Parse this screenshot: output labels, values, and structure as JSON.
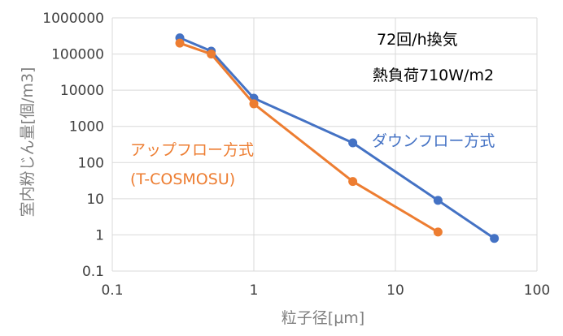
{
  "chart_data": {
    "type": "line",
    "x_scale": "log",
    "y_scale": "log",
    "xlabel": "粒子径[μm]",
    "ylabel": "室内粉じん量[個/m3]",
    "xlim": [
      0.1,
      100
    ],
    "ylim": [
      0.1,
      1000000
    ],
    "x_ticks": [
      "0.1",
      "1",
      "10",
      "100"
    ],
    "y_ticks": [
      "0.1",
      "1",
      "10",
      "100",
      "1000",
      "10000",
      "100000",
      "1000000"
    ],
    "grid": true,
    "series": [
      {
        "name": "ダウンフロー方式",
        "color": "#4472C4",
        "points": [
          {
            "x": 0.3,
            "y": 280000
          },
          {
            "x": 0.5,
            "y": 120000
          },
          {
            "x": 1,
            "y": 6000
          },
          {
            "x": 5,
            "y": 350
          },
          {
            "x": 20,
            "y": 9
          },
          {
            "x": 50,
            "y": 0.8
          }
        ]
      },
      {
        "name": "アップフロー方式",
        "color": "#ED7D31",
        "points": [
          {
            "x": 0.3,
            "y": 200000
          },
          {
            "x": 0.5,
            "y": 100000
          },
          {
            "x": 1,
            "y": 4200
          },
          {
            "x": 5,
            "y": 30
          },
          {
            "x": 20,
            "y": 1.2
          }
        ]
      }
    ],
    "annotations": {
      "ventilation": "72回/h換気",
      "heat_load": "熱負荷710W/m2",
      "down_label": "ダウンフロー方式",
      "up_label": "アップフロー方式",
      "up_sublabel": "(T-COSMOSU)"
    }
  }
}
